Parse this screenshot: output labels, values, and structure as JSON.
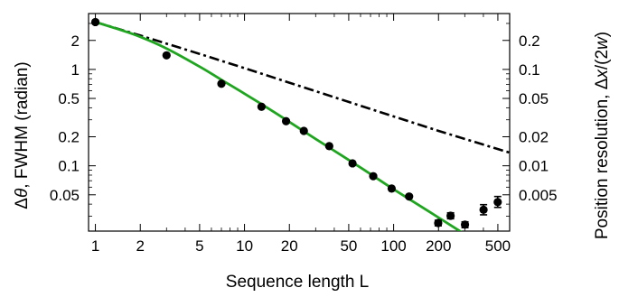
{
  "chart_data": {
    "type": "scatter",
    "xlabel": "Sequence length L",
    "ylabel_left_parts": [
      "Δ",
      "θ",
      ", FWHM (radian)"
    ],
    "ylabel_right_parts": [
      "Position resolution, Δ",
      "x",
      "/(2",
      "w",
      ")"
    ],
    "x_scale": "log",
    "y_scale": "log",
    "xlim": [
      0.9,
      600
    ],
    "ylim": [
      0.021,
      3.8
    ],
    "y_right_lim": [
      0.0021,
      0.38
    ],
    "x_ticks": [
      {
        "value": 1,
        "label": "1"
      },
      {
        "value": 2,
        "label": "2"
      },
      {
        "value": 5,
        "label": "5"
      },
      {
        "value": 10,
        "label": "10"
      },
      {
        "value": 20,
        "label": "20"
      },
      {
        "value": 50,
        "label": "50"
      },
      {
        "value": 100,
        "label": "100"
      },
      {
        "value": 200,
        "label": "200"
      },
      {
        "value": 500,
        "label": "500"
      }
    ],
    "y_ticks_left": [
      {
        "value": 2,
        "label": "2"
      },
      {
        "value": 1,
        "label": "1"
      },
      {
        "value": 0.5,
        "label": "0.5"
      },
      {
        "value": 0.2,
        "label": "0.2"
      },
      {
        "value": 0.1,
        "label": "0.1"
      },
      {
        "value": 0.05,
        "label": "0.05"
      }
    ],
    "y_ticks_right": [
      {
        "value": 0.2,
        "label": "0.2"
      },
      {
        "value": 0.1,
        "label": "0.1"
      },
      {
        "value": 0.05,
        "label": "0.05"
      },
      {
        "value": 0.02,
        "label": "0.02"
      },
      {
        "value": 0.01,
        "label": "0.01"
      },
      {
        "value": 0.005,
        "label": "0.005"
      }
    ],
    "points": [
      {
        "x": 1,
        "y": 3.1
      },
      {
        "x": 3,
        "y": 1.4
      },
      {
        "x": 7,
        "y": 0.71
      },
      {
        "x": 13,
        "y": 0.41
      },
      {
        "x": 19,
        "y": 0.29
      },
      {
        "x": 25,
        "y": 0.23
      },
      {
        "x": 37,
        "y": 0.16
      },
      {
        "x": 53,
        "y": 0.106
      },
      {
        "x": 73,
        "y": 0.078
      },
      {
        "x": 97,
        "y": 0.058
      },
      {
        "x": 127,
        "y": 0.048
      },
      {
        "x": 199,
        "y": 0.0255,
        "err": [
          0.0238,
          0.0272
        ]
      },
      {
        "x": 241,
        "y": 0.0303,
        "err": [
          0.0282,
          0.0325
        ]
      },
      {
        "x": 301,
        "y": 0.0245,
        "err": [
          0.0228,
          0.0262
        ]
      },
      {
        "x": 401,
        "y": 0.035,
        "err": [
          0.031,
          0.0395
        ]
      },
      {
        "x": 499,
        "y": 0.042,
        "err": [
          0.037,
          0.048
        ]
      }
    ],
    "fit_curve": [
      {
        "x": 1,
        "y": 3.1
      },
      {
        "x": 1.5,
        "y": 2.55
      },
      {
        "x": 2,
        "y": 2.18
      },
      {
        "x": 3,
        "y": 1.65
      },
      {
        "x": 5,
        "y": 1.07
      },
      {
        "x": 7,
        "y": 0.78
      },
      {
        "x": 10,
        "y": 0.56
      },
      {
        "x": 15,
        "y": 0.38
      },
      {
        "x": 20,
        "y": 0.285
      },
      {
        "x": 30,
        "y": 0.19
      },
      {
        "x": 50,
        "y": 0.115
      },
      {
        "x": 70,
        "y": 0.082
      },
      {
        "x": 100,
        "y": 0.057
      },
      {
        "x": 150,
        "y": 0.0385
      },
      {
        "x": 200,
        "y": 0.029
      },
      {
        "x": 300,
        "y": 0.0195
      },
      {
        "x": 330,
        "y": 0.0178
      }
    ],
    "bound_line": [
      {
        "x": 1,
        "y": 3.1
      },
      {
        "x": 2,
        "y": 2.25
      },
      {
        "x": 5,
        "y": 1.45
      },
      {
        "x": 10,
        "y": 1.03
      },
      {
        "x": 50,
        "y": 0.46
      },
      {
        "x": 100,
        "y": 0.325
      },
      {
        "x": 200,
        "y": 0.23
      },
      {
        "x": 600,
        "y": 0.137
      }
    ],
    "colors": {
      "fit": "#1fa51f",
      "bound": "#000000",
      "points": "#000000",
      "axes": "#000000"
    },
    "grid": false,
    "legend": "none"
  }
}
